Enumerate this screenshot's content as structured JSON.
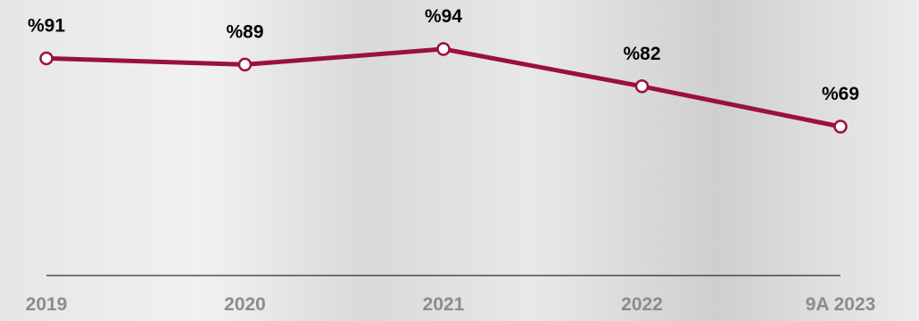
{
  "chart_data": {
    "type": "line",
    "categories": [
      "2019",
      "2020",
      "2021",
      "2022",
      "9A 2023"
    ],
    "series": [
      {
        "values": [
          91,
          89,
          94,
          82,
          69
        ],
        "data_labels": [
          "%91",
          "%89",
          "%94",
          "%82",
          "%69"
        ]
      }
    ],
    "ylim": [
      40,
      100
    ],
    "grid": false,
    "legend": "none",
    "colors": {
      "line": "#9b1139",
      "marker_fill": "#ffffff",
      "axis": "#000000",
      "tick_label": "#8c8c8c",
      "data_label": "#000000"
    }
  }
}
